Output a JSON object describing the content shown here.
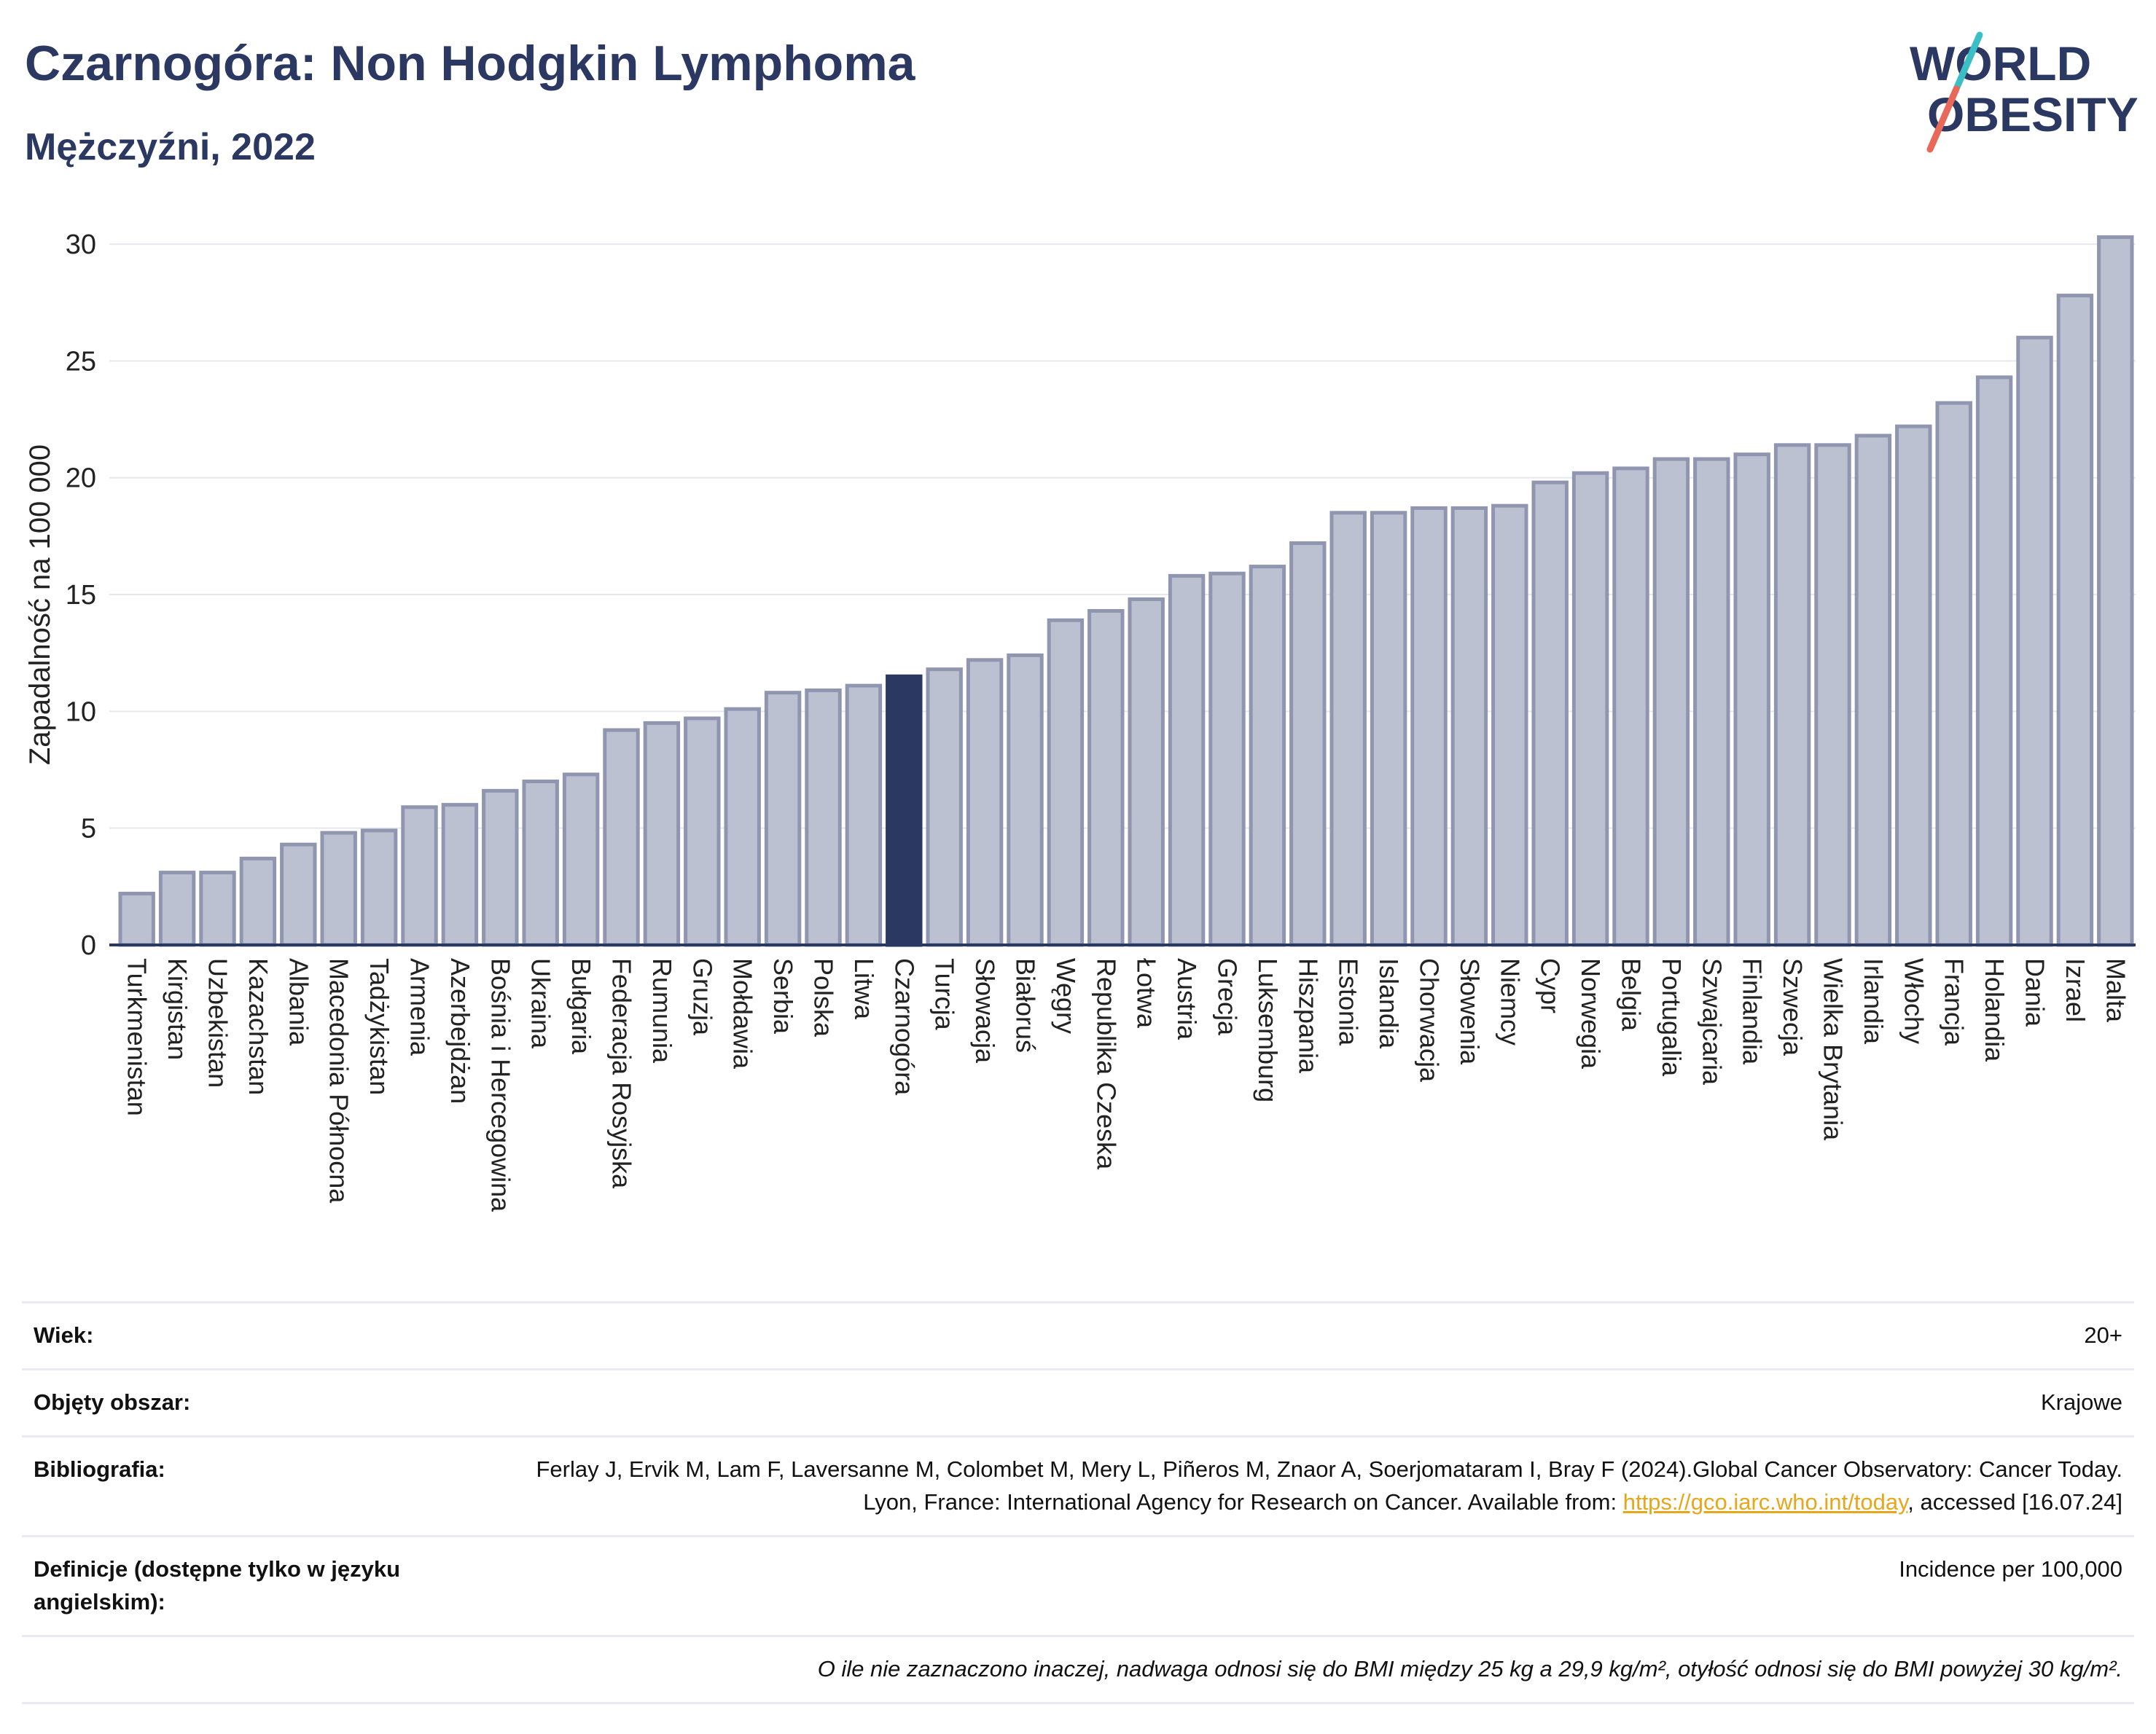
{
  "header": {
    "title": "Czarnogóra: Non Hodgkin Lymphoma",
    "subtitle": "Mężczyźni, 2022"
  },
  "logo": {
    "line1": "WORLD",
    "line2": "OBESITY",
    "colors": {
      "text": "#2b3862",
      "slash_top": "#3bbfc4",
      "slash_bottom": "#e8685a"
    }
  },
  "colors": {
    "bar_fill": "#bcc1d1",
    "bar_stroke": "#9096b0",
    "highlight_fill": "#2b3862",
    "grid": "#e6e8ef",
    "axis_line": "#2b3862"
  },
  "chart_data": {
    "type": "bar",
    "ylabel": "Zapadalność na 100 000",
    "ylim": [
      0,
      31
    ],
    "yticks": [
      0,
      5,
      10,
      15,
      20,
      25,
      30
    ],
    "grid": true,
    "highlight": "Czarnogóra",
    "categories": [
      "Turkmenistan",
      "Kirgistan",
      "Uzbekistan",
      "Kazachstan",
      "Albania",
      "Macedonia Północna",
      "Tadżykistan",
      "Armenia",
      "Azerbejdżan",
      "Bośnia i Hercegowina",
      "Ukraina",
      "Bułgaria",
      "Federacja Rosyjska",
      "Rumunia",
      "Gruzja",
      "Mołdawia",
      "Serbia",
      "Polska",
      "Litwa",
      "Czarnogóra",
      "Turcja",
      "Słowacja",
      "Białoruś",
      "Węgry",
      "Republika Czeska",
      "Łotwa",
      "Austria",
      "Grecja",
      "Luksemburg",
      "Hiszpania",
      "Estonia",
      "Islandia",
      "Chorwacja",
      "Słowenia",
      "Niemcy",
      "Cypr",
      "Norwegia",
      "Belgia",
      "Portugalia",
      "Szwajcaria",
      "Finlandia",
      "Szwecja",
      "Wielka Brytania",
      "Irlandia",
      "Włochy",
      "Francja",
      "Holandia",
      "Dania",
      "Izrael",
      "Malta"
    ],
    "values": [
      2.2,
      3.1,
      3.1,
      3.7,
      4.3,
      4.8,
      4.9,
      5.9,
      6.0,
      6.6,
      7.0,
      7.3,
      9.2,
      9.5,
      9.7,
      10.1,
      10.8,
      10.9,
      11.1,
      11.5,
      11.8,
      12.2,
      12.4,
      13.9,
      14.3,
      14.8,
      15.8,
      15.9,
      16.2,
      17.2,
      18.5,
      18.5,
      18.7,
      18.7,
      18.8,
      19.8,
      20.2,
      20.4,
      20.8,
      20.8,
      21.0,
      21.4,
      21.4,
      21.8,
      22.2,
      23.2,
      24.3,
      26.0,
      27.8,
      30.3
    ]
  },
  "info": {
    "rows": [
      {
        "label": "Wiek:",
        "value": "20+"
      },
      {
        "label": "Objęty obszar:",
        "value": "Krajowe"
      },
      {
        "label": "Bibliografia:",
        "value_pre": "Ferlay J, Ervik M, Lam F, Laversanne M, Colombet M, Mery L, Piñeros M, Znaor A, Soerjomataram I, Bray F (2024).Global Cancer Observatory: Cancer Today. Lyon, France: International Agency for Research on Cancer. Available from: ",
        "link": "https://gco.iarc.who.int/today",
        "value_post": ", accessed [16.07.24]"
      },
      {
        "label": "Definicje (dostępne tylko w języku angielskim):",
        "value": "Incidence per 100,000"
      }
    ],
    "footnote": "O ile nie zaznaczono inaczej, nadwaga odnosi się do BMI między 25 kg a 29,9 kg/m², otyłość odnosi się do BMI powyżej 30 kg/m²."
  }
}
